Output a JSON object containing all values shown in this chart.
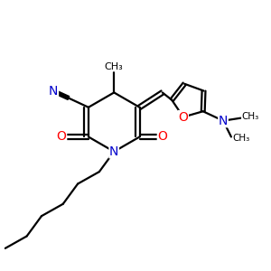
{
  "bg_color": "#ffffff",
  "atom_color_N": "#0000cc",
  "atom_color_O": "#ff0000",
  "bond_color": "#000000",
  "bond_width": 1.6,
  "dbo": 0.08,
  "fig_size": [
    3.0,
    3.0
  ],
  "dpi": 100,
  "xlim": [
    0,
    10
  ],
  "ylim": [
    0,
    10
  ]
}
